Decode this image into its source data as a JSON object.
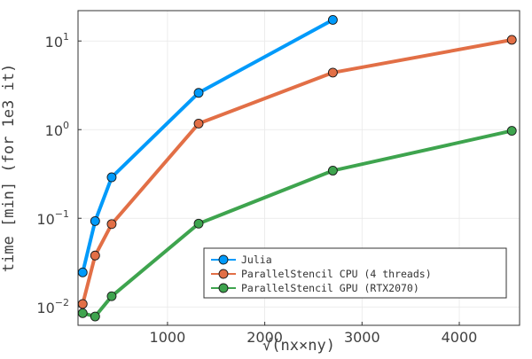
{
  "chart_data": {
    "type": "line",
    "title": "",
    "xlabel": "√(nx×ny)",
    "ylabel": "time [min] (for 1e3 it)",
    "x_scale": "linear",
    "y_scale": "log10",
    "xlim": [
      80,
      4620
    ],
    "ylim": [
      0.0062,
      22
    ],
    "x_ticks": [
      1000,
      2000,
      3000,
      4000
    ],
    "y_ticks": [
      {
        "value": 0.01,
        "base": "10",
        "exp": "−2"
      },
      {
        "value": 0.1,
        "base": "10",
        "exp": "−1"
      },
      {
        "value": 1,
        "base": "10",
        "exp": "0"
      },
      {
        "value": 10,
        "base": "10",
        "exp": "1"
      }
    ],
    "grid": true,
    "legend_position": "bottom-right",
    "series": [
      {
        "name": "Julia",
        "color": "#009AFA",
        "x": [
          128,
          256,
          426,
          1320,
          2700
        ],
        "y": [
          0.0245,
          0.093,
          0.29,
          2.6,
          17.3
        ]
      },
      {
        "name": "ParallelStencil CPU (4 threads)",
        "color": "#E26F46",
        "x": [
          128,
          256,
          426,
          1320,
          2700,
          4540
        ],
        "y": [
          0.0108,
          0.038,
          0.086,
          1.17,
          4.4,
          10.3
        ]
      },
      {
        "name": "ParallelStencil GPU (RTX2070)",
        "color": "#3EA44E",
        "x": [
          128,
          256,
          426,
          1320,
          2700,
          4540
        ],
        "y": [
          0.0085,
          0.0078,
          0.0132,
          0.087,
          0.345,
          0.97
        ]
      }
    ]
  }
}
